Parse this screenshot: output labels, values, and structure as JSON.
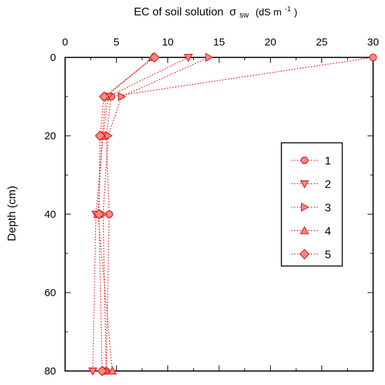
{
  "chart_data": {
    "type": "line",
    "xlabel": "EC of soil solution",
    "xlabel_symbol": "σ",
    "xlabel_subscript": "sw",
    "xlabel_unit_prefix": "(dS m",
    "xlabel_unit_exponent": "-1",
    "xlabel_unit_suffix": ")",
    "ylabel": "Depth (cm)",
    "xlim": [
      0,
      30
    ],
    "ylim": [
      0,
      80
    ],
    "y_inverted": true,
    "x_axis_position": "top",
    "x_ticks": [
      0,
      5,
      10,
      15,
      20,
      25,
      30
    ],
    "y_ticks": [
      0,
      20,
      40,
      60,
      80
    ],
    "grid": false,
    "legend_position": "right",
    "line_color": "#d9232b",
    "marker_fill": "#f48a7d",
    "series": [
      {
        "name": "1",
        "marker": "circle",
        "x": [
          30.0,
          4.5,
          4.0,
          4.3,
          4.0
        ],
        "y": [
          0,
          10,
          20,
          40,
          80
        ]
      },
      {
        "name": "2",
        "marker": "triangle-down",
        "x": [
          12.0,
          4.2,
          3.7,
          3.0,
          2.7
        ],
        "y": [
          0,
          10,
          20,
          40,
          80
        ]
      },
      {
        "name": "3",
        "marker": "triangle-right",
        "x": [
          14.0,
          5.5,
          4.2,
          3.7,
          4.0
        ],
        "y": [
          0,
          10,
          20,
          40,
          80
        ]
      },
      {
        "name": "4",
        "marker": "triangle-up",
        "x": [
          8.5,
          4.0,
          3.6,
          3.2,
          4.6
        ],
        "y": [
          0,
          10,
          20,
          40,
          80
        ]
      },
      {
        "name": "5",
        "marker": "diamond",
        "x": [
          8.7,
          3.8,
          3.4,
          3.3,
          3.6
        ],
        "y": [
          0,
          10,
          20,
          40,
          80
        ]
      }
    ]
  }
}
